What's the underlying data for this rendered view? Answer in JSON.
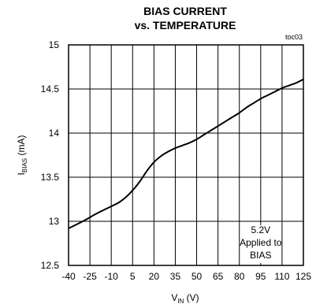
{
  "chart_data": {
    "type": "line",
    "title_line1": "BIAS CURRENT",
    "title_line2": "vs. TEMPERATURE",
    "figure_id": "toc03",
    "xlabel": {
      "main": "V",
      "sub": "IN",
      "suffix": " (V)"
    },
    "ylabel": {
      "main": "I",
      "sub": "BIAS",
      "suffix": " (mA)"
    },
    "xlim": [
      -40,
      125
    ],
    "ylim": [
      12.5,
      15
    ],
    "x_ticks": [
      -40,
      -25,
      -10,
      5,
      20,
      35,
      50,
      65,
      80,
      95,
      110,
      125
    ],
    "x_tick_labels": [
      "-40",
      "-25",
      "-10",
      "5",
      "20",
      "35",
      "50",
      "65",
      "80",
      "95",
      "110",
      "125"
    ],
    "y_ticks": [
      12.5,
      13,
      13.5,
      14,
      14.5,
      15
    ],
    "y_tick_labels": [
      "12.5",
      "13",
      "13.5",
      "14",
      "14.5",
      "15"
    ],
    "grid": true,
    "series": [
      {
        "x": [
          -40,
          -30,
          -20,
          -10,
          -5,
          0,
          5,
          10,
          15,
          20,
          25,
          30,
          35,
          40,
          45,
          50,
          55,
          60,
          65,
          70,
          75,
          80,
          85,
          90,
          95,
          100,
          105,
          110,
          115,
          120,
          125
        ],
        "y": [
          12.92,
          13.0,
          13.09,
          13.17,
          13.21,
          13.27,
          13.35,
          13.45,
          13.57,
          13.67,
          13.74,
          13.79,
          13.83,
          13.86,
          13.89,
          13.93,
          13.98,
          14.03,
          14.08,
          14.13,
          14.18,
          14.23,
          14.29,
          14.34,
          14.39,
          14.43,
          14.47,
          14.51,
          14.54,
          14.57,
          14.61
        ]
      }
    ],
    "annotation": [
      "5.2V",
      "Applied to",
      "BIAS"
    ]
  }
}
